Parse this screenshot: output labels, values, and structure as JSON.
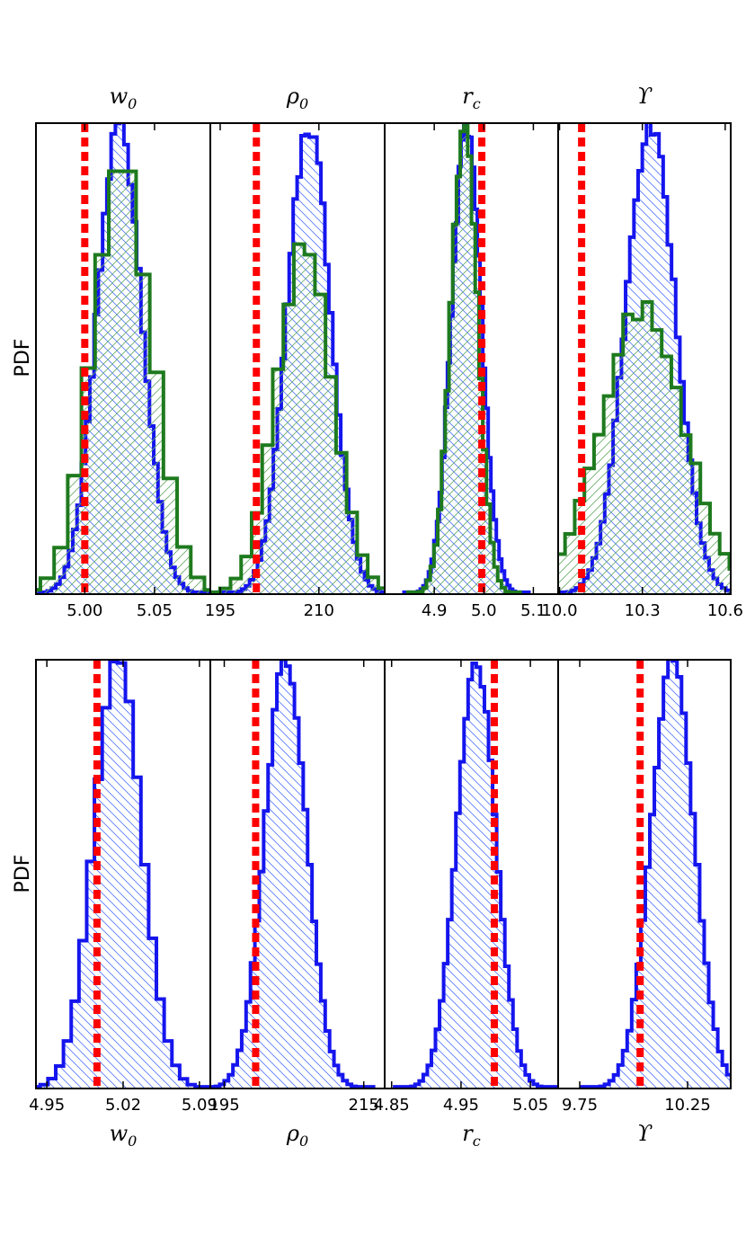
{
  "figure": {
    "ylabel": "PDF",
    "colors": {
      "blue": "#1515ee",
      "green": "#1e7a1e",
      "red": "#ff0000",
      "blue_hatch": "#5577ff",
      "green_hatch": "#66aa66"
    }
  },
  "chart_data": [
    {
      "type": "histogram",
      "row": "top",
      "title_main": "w",
      "title_sub": "0",
      "xlim": [
        4.965,
        5.09
      ],
      "ticks": [
        5.0,
        5.05
      ],
      "tick_labels": [
        "5.00",
        "5.05"
      ],
      "ylim": [
        0,
        1.0
      ],
      "truth": 5.0,
      "series": [
        {
          "name": "blue",
          "color": "blue",
          "hatch": "back",
          "kind": "gauss",
          "mean": 5.025,
          "sigma": 0.016,
          "peak": 1.0,
          "bins": 44,
          "noise": 0.035
        },
        {
          "name": "green",
          "color": "green",
          "hatch": "fwd",
          "kind": "gauss",
          "mean": 5.027,
          "sigma": 0.021,
          "peak": 0.92,
          "bins": 18,
          "noise": 0.06
        }
      ]
    },
    {
      "type": "histogram",
      "row": "top",
      "title_main": "ρ",
      "title_sub": "0",
      "xlim": [
        193.5,
        220
      ],
      "ticks": [
        195,
        210
      ],
      "tick_labels": [
        "195",
        "210"
      ],
      "ylim": [
        0,
        1.0
      ],
      "truth": 200.5,
      "series": [
        {
          "name": "blue",
          "color": "blue",
          "hatch": "back",
          "kind": "gauss",
          "mean": 208.5,
          "sigma": 3.3,
          "peak": 1.0,
          "bins": 46,
          "noise": 0.03
        },
        {
          "name": "green",
          "color": "green",
          "hatch": "fwd",
          "kind": "gauss",
          "mean": 207.8,
          "sigma": 4.2,
          "peak": 0.75,
          "bins": 22,
          "noise": 0.04
        }
      ]
    },
    {
      "type": "histogram",
      "row": "top",
      "title_main": "r",
      "title_sub": "c",
      "xlim": [
        4.8,
        5.15
      ],
      "ticks": [
        4.9,
        5.0,
        5.1
      ],
      "tick_labels": [
        "4.9",
        "5.0",
        "5.1"
      ],
      "ylim": [
        0,
        1.0
      ],
      "truth": 4.996,
      "series": [
        {
          "name": "blue",
          "color": "blue",
          "hatch": "back",
          "kind": "gauss",
          "mean": 4.965,
          "sigma": 0.03,
          "peak": 1.0,
          "bins": 46,
          "noise": 0.035
        },
        {
          "name": "green",
          "color": "green",
          "hatch": "fwd",
          "kind": "gauss",
          "mean": 4.96,
          "sigma": 0.027,
          "peak": 0.99,
          "bins": 30,
          "noise": 0.05
        }
      ]
    },
    {
      "type": "histogram",
      "row": "top",
      "title_main": "ϒ",
      "title_sub": "",
      "xlim": [
        9.995,
        10.62
      ],
      "ticks": [
        10.0,
        10.3,
        10.6
      ],
      "tick_labels": [
        "10.0",
        "10.3",
        "10.6"
      ],
      "ylim": [
        0,
        1.0
      ],
      "truth": 10.08,
      "series": [
        {
          "name": "blue",
          "color": "blue",
          "hatch": "back",
          "kind": "gauss",
          "mean": 10.33,
          "sigma": 0.09,
          "peak": 1.0,
          "bins": 50,
          "noise": 0.03
        },
        {
          "name": "green",
          "color": "green",
          "hatch": "fwd",
          "kind": "gauss",
          "mean": 10.3,
          "sigma": 0.15,
          "peak": 0.61,
          "bins": 36,
          "noise": 0.04
        }
      ]
    },
    {
      "type": "histogram",
      "row": "bottom",
      "xlabel_main": "w",
      "xlabel_sub": "0",
      "xlim": [
        4.94,
        5.1
      ],
      "ticks": [
        4.95,
        5.02,
        5.09
      ],
      "tick_labels": [
        "4.95",
        "5.02",
        "5.09"
      ],
      "ylim": [
        0,
        1.0
      ],
      "truth": 4.996,
      "series": [
        {
          "name": "blue",
          "color": "blue",
          "hatch": "back",
          "kind": "gauss",
          "mean": 5.015,
          "sigma": 0.022,
          "peak": 1.0,
          "bins": 26,
          "noise": 0.02
        }
      ]
    },
    {
      "type": "histogram",
      "row": "bottom",
      "xlabel_main": "ρ",
      "xlabel_sub": "0",
      "xlim": [
        193,
        218
      ],
      "ticks": [
        195,
        215
      ],
      "tick_labels": [
        "195",
        "215"
      ],
      "ylim": [
        0,
        1.0
      ],
      "truth": 199.5,
      "series": [
        {
          "name": "blue",
          "color": "blue",
          "hatch": "back",
          "kind": "gauss",
          "mean": 203.8,
          "sigma": 3.0,
          "peak": 1.0,
          "bins": 40,
          "noise": 0.02
        }
      ]
    },
    {
      "type": "histogram",
      "row": "bottom",
      "xlabel_main": "r",
      "xlabel_sub": "c",
      "xlim": [
        4.84,
        5.09
      ],
      "ticks": [
        4.85,
        4.95,
        5.05
      ],
      "tick_labels": [
        "4.85",
        "4.95",
        "5.05"
      ],
      "ylim": [
        0,
        1.0
      ],
      "truth": 4.998,
      "series": [
        {
          "name": "blue",
          "color": "blue",
          "hatch": "back",
          "kind": "gauss",
          "mean": 4.972,
          "sigma": 0.028,
          "peak": 1.0,
          "bins": 40,
          "noise": 0.02
        }
      ]
    },
    {
      "type": "histogram",
      "row": "bottom",
      "xlabel_main": "ϒ",
      "xlabel_sub": "",
      "xlim": [
        9.65,
        10.45
      ],
      "ticks": [
        9.75,
        10.25
      ],
      "tick_labels": [
        "9.75",
        "10.25"
      ],
      "ylim": [
        0,
        1.0
      ],
      "truth": 10.03,
      "series": [
        {
          "name": "blue",
          "color": "blue",
          "hatch": "back",
          "kind": "gauss",
          "mean": 10.18,
          "sigma": 0.1,
          "peak": 1.0,
          "bins": 40,
          "noise": 0.02
        }
      ]
    }
  ]
}
